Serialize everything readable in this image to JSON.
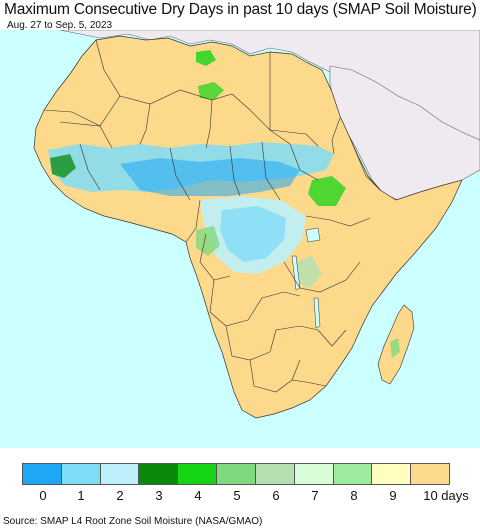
{
  "title": "Maximum Consecutive Dry Days in past 10 days (SMAP Soil Moisture)",
  "date_range": "Aug. 27 to Sep. 5, 2023",
  "source": "Source: SMAP L4 Root Zone Soil Moisture (NASA/GMAO)",
  "map": {
    "region": "Africa",
    "ocean_color": "#ccffff",
    "outside_land_color": "#eeeaf0",
    "border_color": "#333333"
  },
  "legend": {
    "unit": "days",
    "labels": [
      "0",
      "1",
      "2",
      "3",
      "4",
      "5",
      "6",
      "7",
      "8",
      "9",
      "10 days"
    ],
    "colors": [
      "#1ea7f5",
      "#7fdcf7",
      "#bdf0fb",
      "#0a8a0a",
      "#14d414",
      "#7ed87e",
      "#b5dfb0",
      "#d8fcd8",
      "#9eeb9e",
      "#fffec0",
      "#fdd98c"
    ]
  }
}
